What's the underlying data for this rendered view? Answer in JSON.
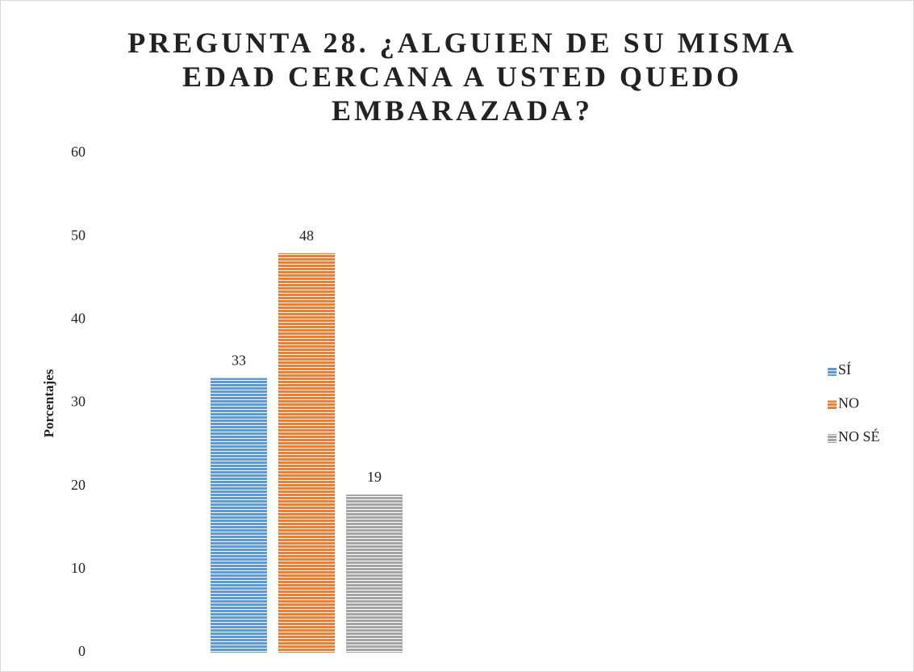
{
  "chart_data": {
    "type": "bar",
    "title": "PREGUNTA 28. ¿ALGUIEN DE SU MISMA EDAD CERCANA A USTED QUEDO EMBARAZADA?",
    "y_label": "Porcentajes",
    "categories": [
      null
    ],
    "series": [
      {
        "name": "SÍ",
        "color": "#5b9bd5",
        "values": [
          33
        ]
      },
      {
        "name": "NO",
        "color": "#ed7d31",
        "values": [
          48
        ]
      },
      {
        "name": "NO SÉ",
        "color": "#a5a5a5",
        "values": [
          19
        ]
      }
    ],
    "ylim": [
      0,
      60
    ],
    "yticks": [
      0,
      10,
      20,
      30,
      40,
      50,
      60
    ],
    "grid": false,
    "legend": "right",
    "data_labels": true
  }
}
